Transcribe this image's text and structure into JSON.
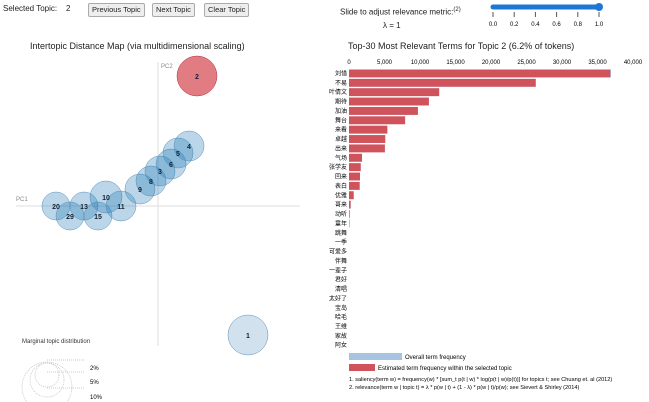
{
  "controls": {
    "selected_label": "Selected Topic:",
    "selected_value": "2",
    "prev": "Previous Topic",
    "next": "Next Topic",
    "clear": "Clear Topic",
    "slider_label": "Slide to adjust relevance metric:",
    "slider_sup": "(2)",
    "lambda_text": "λ = 1",
    "lambda": 1,
    "slider_ticks": [
      "0.0",
      "0.2",
      "0.4",
      "0.6",
      "0.8",
      "1.0"
    ]
  },
  "left": {
    "title": "Intertopic Distance Map (via multidimensional scaling)",
    "pc1": "PC1",
    "pc2": "PC2",
    "marginal_title": "Marginal topic distribution",
    "marginal_levels": [
      "2%",
      "5%",
      "10%"
    ],
    "topic_labels": [
      "2",
      "1",
      "20",
      "29",
      "13",
      "15",
      "10",
      "11",
      "9",
      "8",
      "3",
      "6",
      "5",
      "4"
    ]
  },
  "chart_data": {
    "type": "bar",
    "orientation": "horizontal",
    "title": "Top-30 Most Relevant Terms for Topic 2 (6.2% of tokens)",
    "xlim": [
      0,
      40000
    ],
    "xticks": [
      "0",
      "5,000",
      "10,000",
      "15,000",
      "20,000",
      "25,000",
      "30,000",
      "35,000",
      "40,000"
    ],
    "categories": [
      "刘惜",
      "不易",
      "叶倩文",
      "期待",
      "加油",
      "舞台",
      "来看",
      "卓越",
      "出来",
      "气场",
      "张学友",
      "回来",
      "表白",
      "优雅",
      "哥来",
      "动听",
      "童年",
      "跳舞",
      "一季",
      "可爱多",
      "伴舞",
      "一辈子",
      "君好",
      "清唱",
      "太好了",
      "宝岛",
      "哈毛",
      "王维",
      "家故",
      "阿女"
    ],
    "series": [
      {
        "name": "Overall term frequency",
        "color": "#a6c4e0",
        "values": [
          36900,
          26300,
          12700,
          11250,
          9700,
          7900,
          5400,
          5100,
          5050,
          1830,
          1650,
          1550,
          1500,
          660,
          230,
          90,
          60,
          0,
          0,
          0,
          0,
          0,
          0,
          0,
          0,
          0,
          0,
          0,
          0,
          0
        ]
      },
      {
        "name": "Estimated term frequency within the selected topic",
        "color": "#d0535c",
        "values": [
          36800,
          26300,
          12700,
          11250,
          9700,
          7900,
          5400,
          5100,
          5050,
          1830,
          1650,
          1550,
          1500,
          660,
          230,
          90,
          60,
          0,
          0,
          0,
          0,
          0,
          0,
          0,
          0,
          0,
          0,
          0,
          0,
          0
        ]
      }
    ],
    "footnotes": [
      "1. saliency(term w) = frequency(w) * [sum_t p(t | w) * log(p(t | w)/p(t))] for topics t; see Chuang et. al (2012)",
      "2. relevance(term w | topic t) = λ * p(w | t) + (1 - λ) * p(w | t)/p(w); see Sievert & Shirley (2014)"
    ]
  }
}
